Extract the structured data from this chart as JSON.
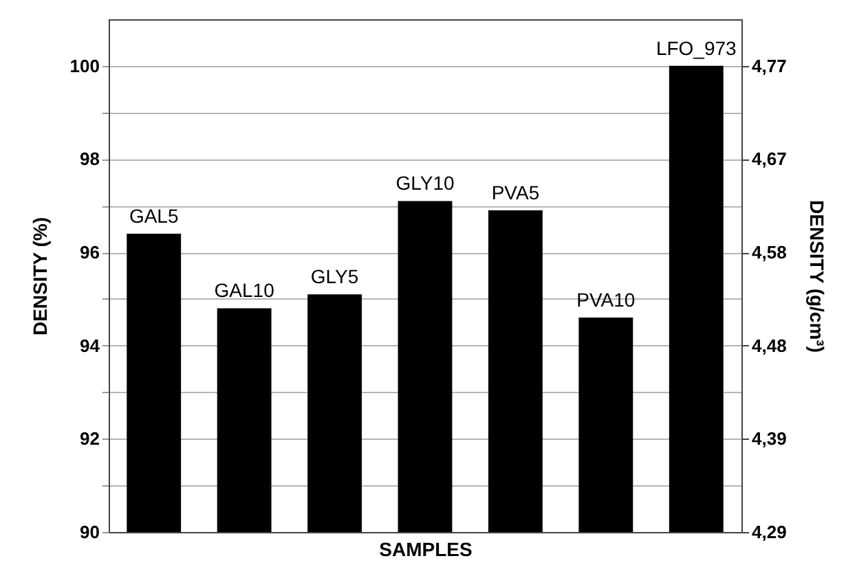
{
  "chart_data": {
    "type": "bar",
    "xlabel": "SAMPLES",
    "ylabel": "DENSITY (%)",
    "y2label": "DENSITY (g/cm³)",
    "categories": [
      "GAL5",
      "GAL10",
      "GLY5",
      "GLY10",
      "PVA5",
      "PVA10",
      "LFO_973"
    ],
    "series": [
      {
        "color": "#000000",
        "values": [
          96.4,
          94.8,
          95.1,
          97.1,
          96.9,
          94.6,
          100
        ]
      }
    ],
    "ylim": [
      90,
      101
    ],
    "yticks": [
      90,
      {
        "value": 91,
        "label": null
      },
      92,
      {
        "value": 93,
        "label": null
      },
      94,
      {
        "value": 95,
        "label": null
      },
      96,
      {
        "value": 97,
        "label": null
      },
      98,
      {
        "value": 99,
        "label": null
      },
      100
    ],
    "y2lim": [
      4.29,
      4.818
    ],
    "y2ticks": [
      {
        "value": 4.29,
        "label": "4,29"
      },
      {
        "value": 4.386,
        "label": "4,39"
      },
      {
        "value": 4.482,
        "label": "4,48"
      },
      {
        "value": 4.578,
        "label": "4,58"
      },
      {
        "value": 4.674,
        "label": "4,67"
      },
      {
        "value": 4.77,
        "label": "4,77"
      }
    ],
    "grid": "y"
  }
}
